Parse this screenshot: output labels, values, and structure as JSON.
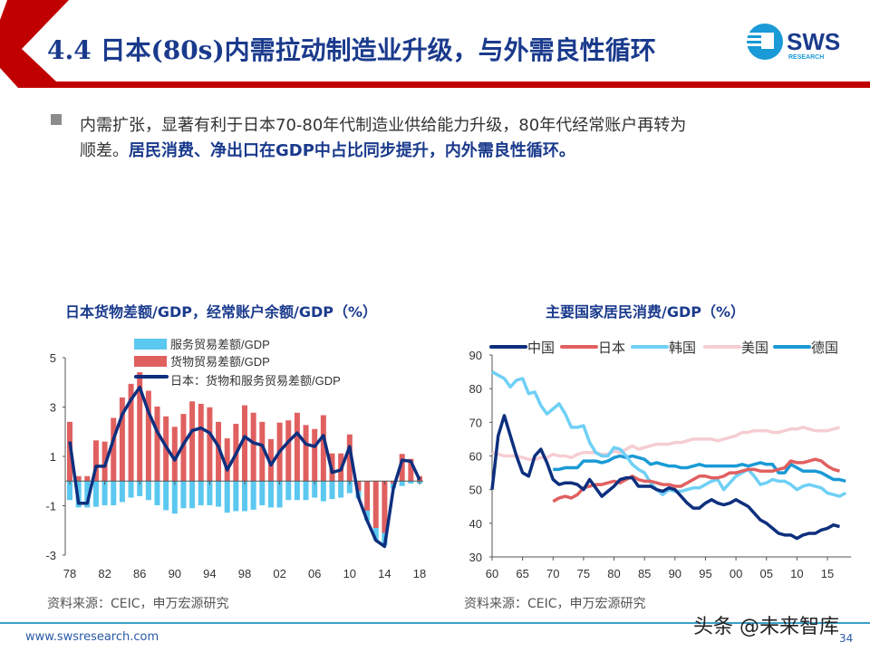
{
  "header": {
    "title": "4.4 日本(80s)内需拉动制造业升级，与外需良性循环",
    "logo_text": "SWS",
    "logo_sub": "RESEARCH",
    "accent": "#c00000",
    "title_color": "#1a3a8c"
  },
  "bullet": {
    "line1": "内需扩张，显著有利于日本70-80年代制造业供给能力升级，80年代经常账户再转为",
    "line2_plain": "顺差。",
    "line2_bold": "居民消费、净出口在GDP中占比同步提升，内外需良性循环。"
  },
  "footer": {
    "url": "www.swsresearch.com",
    "page": "34",
    "watermark": "头条 @未来智库"
  },
  "chart_data": [
    {
      "type": "bar",
      "title": "日本货物差额/GDP，经常账户余额/GDP（%）",
      "source": "资料来源：CEIC，申万宏源研究",
      "x": [
        1978,
        1979,
        1980,
        1981,
        1982,
        1983,
        1984,
        1985,
        1986,
        1987,
        1988,
        1989,
        1990,
        1991,
        1992,
        1993,
        1994,
        1995,
        1996,
        1997,
        1998,
        1999,
        2000,
        2001,
        2002,
        2003,
        2004,
        2005,
        2006,
        2007,
        2008,
        2009,
        2010,
        2011,
        2012,
        2013,
        2014,
        2015,
        2016,
        2017,
        2018
      ],
      "xticks": [
        "78",
        "82",
        "86",
        "90",
        "94",
        "98",
        "02",
        "06",
        "10",
        "14",
        "18"
      ],
      "yticks": [
        "5",
        "3",
        "1",
        "-1",
        "-3"
      ],
      "ylim": [
        -3,
        5
      ],
      "series": [
        {
          "name": "服务贸易差额/GDP",
          "kind": "bar",
          "color": "#5bc8f0",
          "values": [
            -0.77,
            -1.07,
            -1.07,
            -1.04,
            -0.98,
            -0.98,
            -0.85,
            -0.67,
            -0.61,
            -0.77,
            -0.98,
            -1.18,
            -1.32,
            -1.1,
            -1.1,
            -0.98,
            -0.98,
            -1.04,
            -1.28,
            -1.22,
            -1.22,
            -1.16,
            -0.98,
            -1.07,
            -1.07,
            -0.77,
            -0.77,
            -0.77,
            -0.67,
            -0.82,
            -0.73,
            -0.67,
            -0.49,
            -0.3,
            -0.4,
            -0.5,
            -0.5,
            -0.2,
            -0.2,
            -0.1,
            -0.1
          ]
        },
        {
          "name": "货物贸易差额/GDP",
          "kind": "bar",
          "color": "#e06060",
          "values": [
            2.4,
            0.2,
            0.2,
            1.65,
            1.6,
            2.56,
            3.39,
            3.94,
            4.41,
            3.66,
            3.02,
            2.62,
            2.2,
            2.72,
            3.23,
            3.13,
            2.99,
            2.4,
            1.73,
            2.32,
            3.07,
            2.77,
            2.4,
            1.7,
            2.37,
            2.46,
            2.77,
            2.27,
            2.11,
            2.67,
            1.12,
            1.12,
            1.89,
            -0.4,
            -1.2,
            -1.9,
            -2.1,
            -0.1,
            1.1,
            0.9,
            0.2
          ]
        },
        {
          "name": "日本：货物和服务贸易差额/GDP",
          "kind": "line",
          "color": "#0d2f7e",
          "values": [
            1.6,
            -0.9,
            -0.9,
            0.6,
            0.6,
            1.7,
            2.7,
            3.3,
            3.8,
            2.8,
            2.0,
            1.4,
            0.85,
            1.5,
            2.05,
            2.15,
            1.95,
            1.4,
            0.45,
            1.1,
            1.8,
            1.55,
            1.45,
            0.65,
            1.2,
            1.6,
            1.95,
            1.5,
            1.4,
            1.85,
            0.35,
            0.45,
            1.4,
            -0.65,
            -1.6,
            -2.4,
            -2.65,
            -0.3,
            0.85,
            0.8,
            0.05
          ]
        }
      ]
    },
    {
      "type": "line",
      "title": "主要国家居民消费/GDP（%）",
      "source": "资料来源：CEIC，申万宏源研究",
      "xticks": [
        "60",
        "65",
        "70",
        "75",
        "80",
        "85",
        "90",
        "95",
        "00",
        "05",
        "10",
        "15"
      ],
      "yticks": [
        "90",
        "80",
        "70",
        "60",
        "50",
        "40",
        "30"
      ],
      "ylim": [
        30,
        90
      ],
      "xlim": [
        1960,
        2018
      ],
      "series": [
        {
          "name": "中国",
          "color": "#0d2f7e",
          "start": 1960,
          "values": [
            50,
            66,
            72,
            66,
            60,
            55,
            54,
            60,
            62,
            58,
            53,
            51.5,
            52,
            52,
            51.5,
            50,
            53,
            50.5,
            48,
            49.5,
            51,
            53,
            53.5,
            53.5,
            51,
            51,
            51,
            50,
            49.5,
            50.5,
            50,
            48,
            46,
            44.5,
            44.5,
            46,
            47,
            46,
            45.5,
            46,
            47,
            46,
            45,
            43,
            41,
            40,
            38.5,
            37,
            36.5,
            36.5,
            35.5,
            36.5,
            37,
            37,
            38,
            38.5,
            39.5,
            39
          ]
        },
        {
          "name": "日本",
          "color": "#e06060",
          "start": 1970,
          "values": [
            46.5,
            47.5,
            48,
            47.5,
            48.5,
            50.5,
            51,
            51.5,
            51.5,
            52,
            52.5,
            52,
            53,
            54,
            53,
            52.5,
            52.5,
            52,
            51.5,
            51.5,
            51,
            51,
            52,
            53,
            54,
            54,
            53.5,
            53.5,
            54,
            55,
            55,
            55.5,
            56,
            56,
            55.5,
            55.5,
            55.5,
            56,
            56.5,
            58.5,
            58,
            58,
            58.5,
            59,
            58.5,
            57,
            56,
            55.5
          ]
        },
        {
          "name": "韩国",
          "color": "#6fd0f5",
          "start": 1960,
          "values": [
            85,
            84,
            83,
            80.5,
            82.5,
            83,
            78.5,
            79,
            75,
            72.5,
            74,
            75.5,
            72.5,
            68.5,
            68.5,
            69,
            64,
            61,
            60,
            60,
            62.5,
            62,
            60,
            57.5,
            56,
            55,
            52,
            50,
            48.5,
            50,
            49.5,
            49.5,
            50,
            50.5,
            50.5,
            51.5,
            52.5,
            53,
            50,
            52,
            54,
            55,
            56,
            54,
            51.5,
            52,
            53,
            52.5,
            52.5,
            51.5,
            50,
            51,
            51.5,
            51,
            50.5,
            49,
            48.5,
            48,
            49
          ]
        },
        {
          "name": "美国",
          "color": "#f5cdd2",
          "start": 1960,
          "values": [
            61,
            60.5,
            60,
            60,
            60,
            59.5,
            59,
            59,
            59.5,
            59.5,
            60.5,
            60,
            60,
            59.5,
            60.5,
            61,
            61,
            61,
            60.5,
            60.5,
            61.5,
            61,
            62,
            63,
            62,
            62.5,
            63,
            63.5,
            63.5,
            63.5,
            64,
            64,
            64.5,
            65,
            65,
            65,
            65,
            64.5,
            65,
            65.5,
            66,
            67,
            67,
            67.5,
            67.5,
            67.5,
            67,
            67,
            67.5,
            68,
            68,
            68.5,
            68,
            67.5,
            67.5,
            67.5,
            68,
            68.5
          ]
        },
        {
          "name": "德国",
          "color": "#1a9ad6",
          "start": 1970,
          "values": [
            56,
            56,
            56.5,
            56.5,
            56.5,
            58.5,
            58.5,
            58.5,
            58,
            58.5,
            59.5,
            60,
            59.5,
            60,
            59.5,
            59,
            57.5,
            58,
            57.5,
            57,
            57,
            56.5,
            56.5,
            57,
            57.5,
            57,
            57,
            57,
            57,
            57,
            57,
            57.5,
            57,
            57.5,
            58,
            57.5,
            57.5,
            55,
            55,
            57.5,
            56.5,
            55.5,
            55.5,
            55.5,
            55,
            54,
            53,
            53,
            52.5
          ]
        }
      ]
    }
  ]
}
